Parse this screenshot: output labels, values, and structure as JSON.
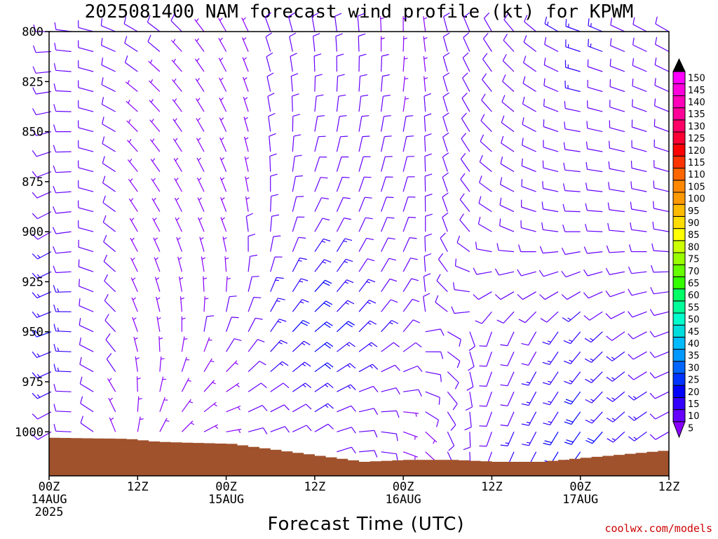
{
  "chart_data": {
    "type": "wind-barb-profile",
    "title": "2025081400 NAM forecast wind profile (kt) for KPWM",
    "xlabel": "Forecast Time (UTC)",
    "credit": "coolwx.com/models",
    "y_axis": {
      "label": "",
      "ticks": [
        800,
        825,
        850,
        875,
        900,
        925,
        950,
        975,
        1000
      ],
      "range": [
        800,
        1022
      ],
      "inverted": true
    },
    "x_axis": {
      "range_hours": [
        0,
        84
      ],
      "ticks": [
        {
          "hour": 0,
          "labels": [
            "00Z",
            "14AUG",
            "2025"
          ]
        },
        {
          "hour": 12,
          "labels": [
            "12Z"
          ]
        },
        {
          "hour": 24,
          "labels": [
            "00Z",
            "15AUG"
          ]
        },
        {
          "hour": 36,
          "labels": [
            "12Z"
          ]
        },
        {
          "hour": 48,
          "labels": [
            "00Z",
            "16AUG"
          ]
        },
        {
          "hour": 60,
          "labels": [
            "12Z"
          ]
        },
        {
          "hour": 72,
          "labels": [
            "00Z",
            "17AUG"
          ]
        },
        {
          "hour": 84,
          "labels": [
            "12Z"
          ]
        }
      ]
    },
    "terrain": {
      "color": "#a0522d",
      "surface_pressure": [
        {
          "hour": 0,
          "p": 1003
        },
        {
          "hour": 10,
          "p": 1003.5
        },
        {
          "hour": 14,
          "p": 1005
        },
        {
          "hour": 24,
          "p": 1006
        },
        {
          "hour": 30,
          "p": 1009
        },
        {
          "hour": 36,
          "p": 1012
        },
        {
          "hour": 42,
          "p": 1015
        },
        {
          "hour": 48,
          "p": 1014
        },
        {
          "hour": 54,
          "p": 1014
        },
        {
          "hour": 60,
          "p": 1015
        },
        {
          "hour": 66,
          "p": 1015
        },
        {
          "hour": 72,
          "p": 1013
        },
        {
          "hour": 78,
          "p": 1011
        },
        {
          "hour": 84,
          "p": 1009
        }
      ]
    },
    "wind_field": {
      "units": "kt",
      "keyframes": [
        {
          "hour": 0,
          "layers": [
            {
              "p": 800,
              "dir": 270,
              "spd": 10
            },
            {
              "p": 900,
              "dir": 240,
              "spd": 12
            },
            {
              "p": 950,
              "dir": 250,
              "spd": 18
            },
            {
              "p": 1000,
              "dir": 240,
              "spd": 10
            }
          ]
        },
        {
          "hour": 12,
          "layers": [
            {
              "p": 800,
              "dir": 300,
              "spd": 8
            },
            {
              "p": 900,
              "dir": 330,
              "spd": 6
            },
            {
              "p": 950,
              "dir": 340,
              "spd": 6
            },
            {
              "p": 1000,
              "dir": 10,
              "spd": 5
            }
          ]
        },
        {
          "hour": 24,
          "layers": [
            {
              "p": 800,
              "dir": 330,
              "spd": 7
            },
            {
              "p": 900,
              "dir": 340,
              "spd": 6
            },
            {
              "p": 950,
              "dir": 20,
              "spd": 8
            },
            {
              "p": 1000,
              "dir": 80,
              "spd": 6
            }
          ]
        },
        {
          "hour": 36,
          "layers": [
            {
              "p": 800,
              "dir": 350,
              "spd": 8
            },
            {
              "p": 900,
              "dir": 30,
              "spd": 12
            },
            {
              "p": 950,
              "dir": 50,
              "spd": 22
            },
            {
              "p": 1000,
              "dir": 60,
              "spd": 12
            }
          ]
        },
        {
          "hour": 48,
          "layers": [
            {
              "p": 800,
              "dir": 0,
              "spd": 7
            },
            {
              "p": 900,
              "dir": 20,
              "spd": 8
            },
            {
              "p": 950,
              "dir": 40,
              "spd": 10
            },
            {
              "p": 1000,
              "dir": 110,
              "spd": 6
            }
          ]
        },
        {
          "hour": 60,
          "layers": [
            {
              "p": 800,
              "dir": 330,
              "spd": 8
            },
            {
              "p": 900,
              "dir": 300,
              "spd": 8
            },
            {
              "p": 950,
              "dir": 200,
              "spd": 8
            },
            {
              "p": 1000,
              "dir": 200,
              "spd": 10
            }
          ]
        },
        {
          "hour": 72,
          "layers": [
            {
              "p": 800,
              "dir": 290,
              "spd": 14
            },
            {
              "p": 900,
              "dir": 270,
              "spd": 10
            },
            {
              "p": 950,
              "dir": 220,
              "spd": 14
            },
            {
              "p": 1000,
              "dir": 215,
              "spd": 20
            }
          ]
        },
        {
          "hour": 84,
          "layers": [
            {
              "p": 800,
              "dir": 300,
              "spd": 10
            },
            {
              "p": 900,
              "dir": 280,
              "spd": 8
            },
            {
              "p": 950,
              "dir": 250,
              "spd": 10
            },
            {
              "p": 1000,
              "dir": 240,
              "spd": 12
            }
          ]
        }
      ]
    },
    "colorbar": {
      "levels": [
        5,
        10,
        15,
        20,
        25,
        30,
        35,
        40,
        45,
        50,
        55,
        60,
        65,
        70,
        75,
        80,
        85,
        90,
        95,
        100,
        105,
        110,
        115,
        120,
        125,
        130,
        135,
        140,
        145,
        150
      ],
      "colors": [
        "#8800ff",
        "#6600ff",
        "#3300ff",
        "#0000ff",
        "#0033ff",
        "#0066ff",
        "#0099ff",
        "#00bbff",
        "#00dddd",
        "#00ffcc",
        "#00ff99",
        "#00ff66",
        "#33ff00",
        "#66ff00",
        "#99ff00",
        "#ccff00",
        "#ffff00",
        "#ffdd00",
        "#ffbb00",
        "#ff9900",
        "#ff8800",
        "#ff6600",
        "#ff3300",
        "#ff0000",
        "#ff0033",
        "#ff0066",
        "#ff0099",
        "#ff00bb",
        "#ff00dd",
        "#ff00ff"
      ]
    }
  }
}
